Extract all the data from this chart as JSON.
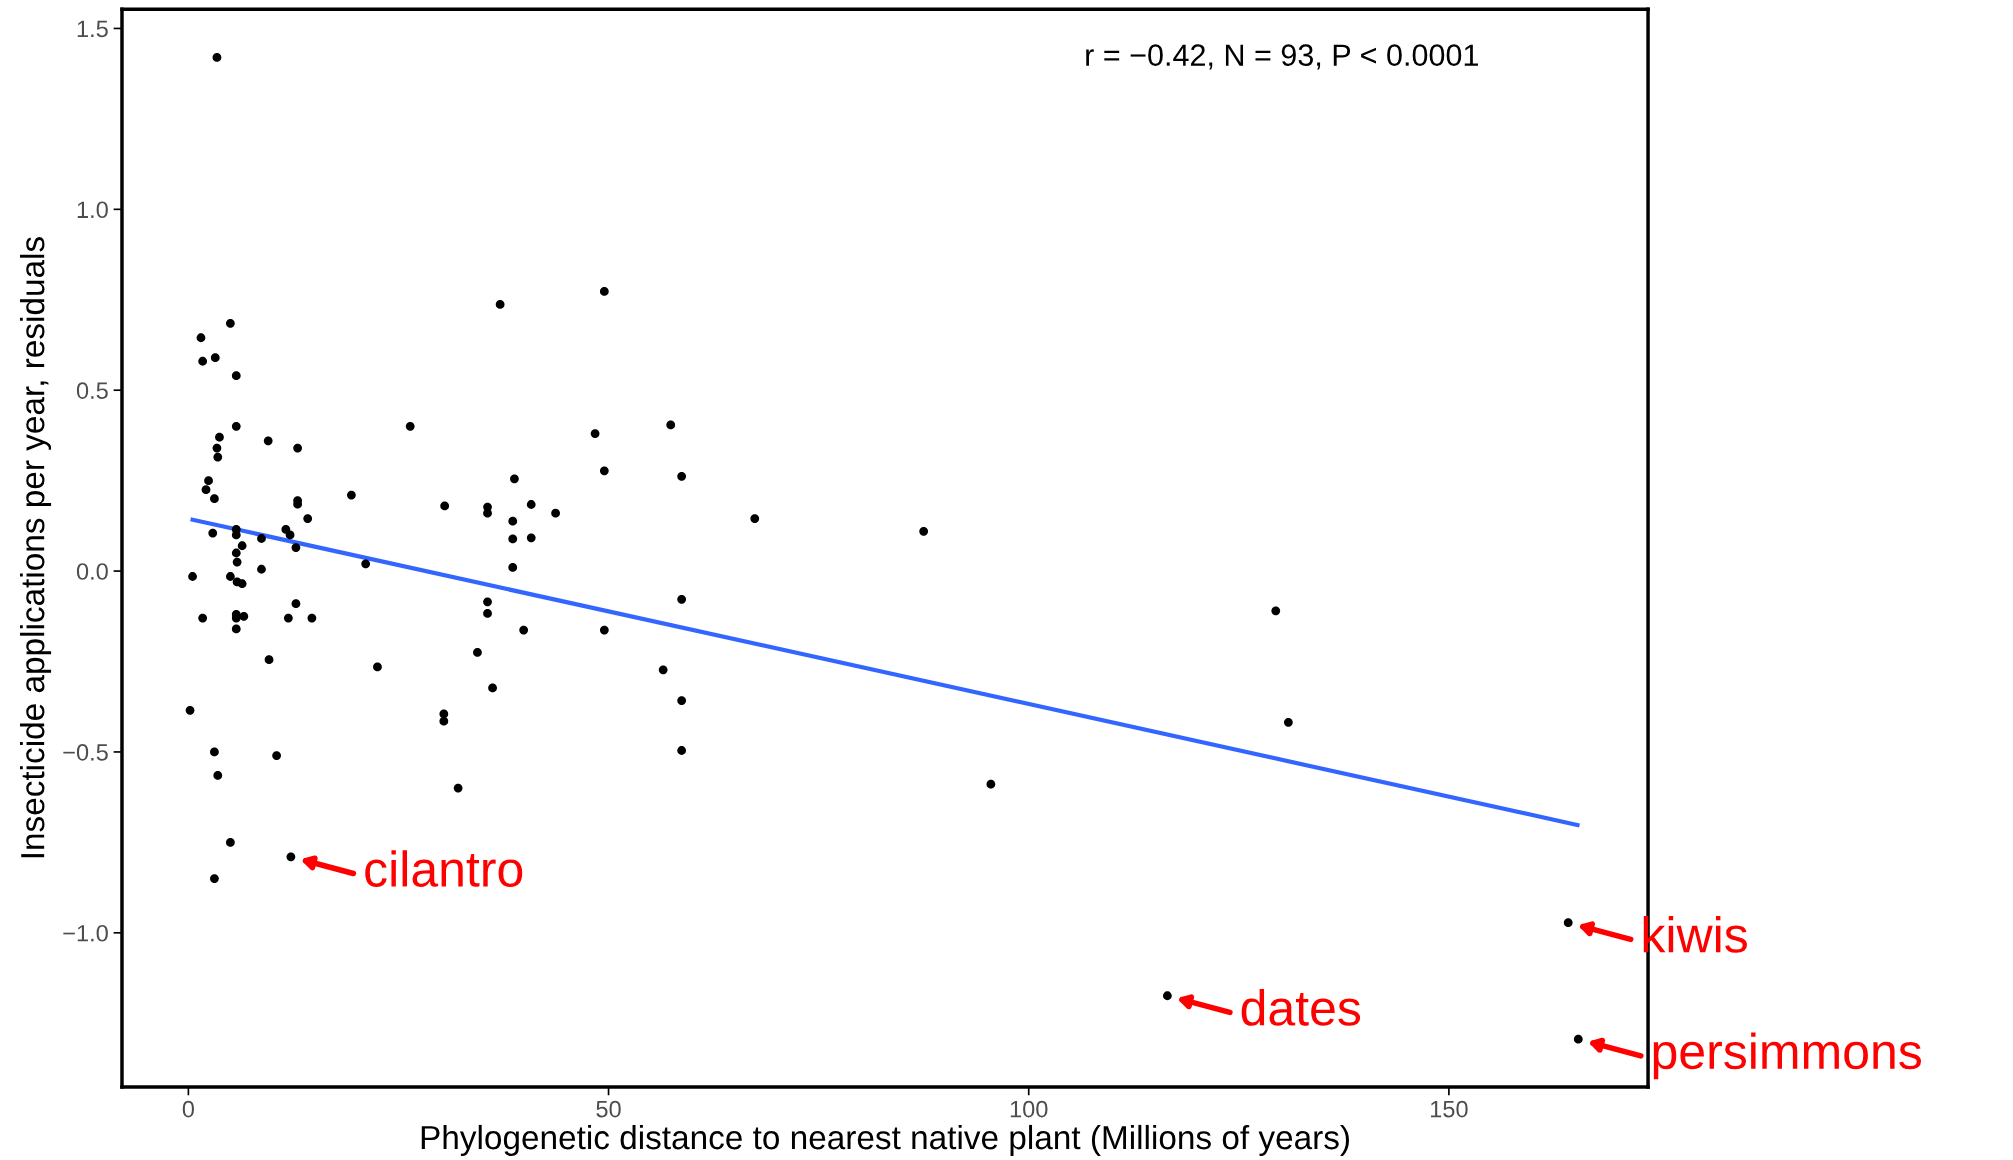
{
  "chart_data": {
    "type": "scatter",
    "xlabel": "Phylogenetic distance to nearest native plant (Millions of years)",
    "ylabel": "Insecticide applications per year, residuals",
    "xlim": [
      -7.9,
      173.7
    ],
    "ylim": [
      -1.426,
      1.553
    ],
    "xticks": [
      0,
      50,
      100,
      150
    ],
    "yticks": [
      {
        "value": -1.0,
        "label": "−1.0"
      },
      {
        "value": -0.5,
        "label": "−0.5"
      },
      {
        "value": 0.0,
        "label": "0.0"
      },
      {
        "value": 0.5,
        "label": "0.5"
      },
      {
        "value": 1.0,
        "label": "1.0"
      },
      {
        "value": 1.5,
        "label": "1.5"
      }
    ],
    "grid": false,
    "legend": false,
    "series": [
      {
        "marker": "circle",
        "color": "#000000",
        "x": [
          3.4,
          1.5,
          1.7,
          5.0,
          3.2,
          5.7,
          5.7,
          3.7,
          3.4,
          3.5,
          9.5,
          13.0,
          2.4,
          2.1,
          3.1,
          13.0,
          13.0,
          14.2,
          2.9,
          5.7,
          5.7,
          11.6,
          12.1,
          8.7,
          6.4,
          12.8,
          5.7,
          5.8,
          8.7,
          0.5,
          5.0,
          5.8,
          6.4,
          12.8,
          1.7,
          5.7,
          5.7,
          6.6,
          11.9,
          14.7,
          5.7,
          9.6,
          0.2,
          3.1,
          10.5,
          3.5,
          5.0,
          3.1,
          12.2,
          19.4,
          21.1,
          22.5,
          26.4,
          30.5,
          30.4,
          30.4,
          32.1,
          34.4,
          35.6,
          35.6,
          35.6,
          35.6,
          36.2,
          37.1,
          38.8,
          38.6,
          38.6,
          38.6,
          40.8,
          40.8,
          39.9,
          43.7,
          48.4,
          49.5,
          49.5,
          49.5,
          56.5,
          57.4,
          58.7,
          58.7,
          58.7,
          58.7,
          67.4,
          87.5,
          95.5,
          129.4,
          130.9,
          116.5,
          164.2,
          165.4
        ],
        "values": [
          1.42,
          0.645,
          0.58,
          0.685,
          0.59,
          0.54,
          0.4,
          0.37,
          0.34,
          0.315,
          0.36,
          0.34,
          0.25,
          0.225,
          0.2,
          0.195,
          0.185,
          0.145,
          0.105,
          0.115,
          0.1,
          0.115,
          0.1,
          0.09,
          0.07,
          0.065,
          0.05,
          0.025,
          0.005,
          -0.015,
          -0.015,
          -0.03,
          -0.035,
          -0.09,
          -0.13,
          -0.12,
          -0.13,
          -0.125,
          -0.13,
          -0.13,
          -0.16,
          -0.245,
          -0.385,
          -0.5,
          -0.51,
          -0.565,
          -0.75,
          -0.85,
          -0.79,
          0.21,
          0.02,
          -0.265,
          0.4,
          0.18,
          -0.395,
          -0.415,
          -0.6,
          -0.225,
          0.177,
          0.16,
          -0.085,
          -0.117,
          -0.323,
          0.737,
          0.255,
          0.138,
          0.089,
          0.01,
          0.184,
          0.092,
          -0.163,
          0.16,
          0.38,
          0.773,
          0.277,
          -0.163,
          -0.273,
          0.404,
          0.262,
          -0.078,
          -0.358,
          -0.496,
          0.145,
          0.11,
          -0.589,
          -0.11,
          -0.418,
          -1.174,
          -0.972,
          -1.294
        ]
      },
      {
        "type": "line",
        "color": "#3366ff",
        "x": [
          0.5,
          165.3
        ],
        "values": [
          0.142,
          -0.702
        ]
      }
    ],
    "annotations": [
      "r = −0.42, N = 93, P < 0.0001",
      {
        "text": "cilantro",
        "x": 12.2,
        "y": -0.79
      },
      {
        "text": "dates",
        "x": 116.5,
        "y": -1.174
      },
      {
        "text": "kiwis",
        "x": 164.2,
        "y": -0.972
      },
      {
        "text": "persimmons",
        "x": 165.4,
        "y": -1.294
      }
    ]
  }
}
